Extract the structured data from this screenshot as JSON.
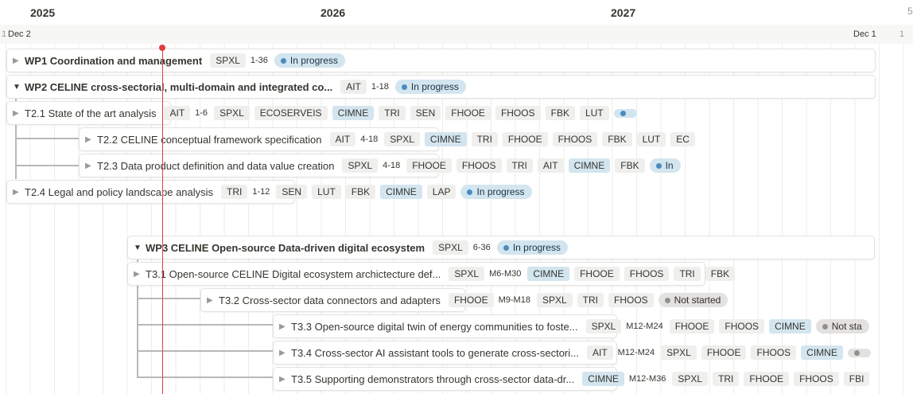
{
  "timeline": {
    "years": [
      "2025",
      "2026",
      "2027",
      "5"
    ],
    "day_left_partial": "1",
    "day_start": "Dec 2",
    "day_end": "Dec 1",
    "day_right_partial": "1"
  },
  "rows": [
    {
      "title": "WP1 Coordination and management",
      "expanded": false,
      "tags": [
        {
          "t": "tag",
          "v": "SPXL"
        },
        {
          "t": "plain",
          "v": "1-36"
        },
        {
          "t": "status",
          "v": "In progress",
          "kind": "prog"
        }
      ]
    },
    {
      "title": "WP2 CELINE cross-sectorial, multi-domain and integrated co...",
      "expanded": true,
      "tags": [
        {
          "t": "tag",
          "v": "AIT"
        },
        {
          "t": "plain",
          "v": "1-18"
        },
        {
          "t": "status",
          "v": "In progress",
          "kind": "prog"
        }
      ]
    },
    {
      "title": "T2.1 State of the art analysis",
      "expanded": false,
      "tags": [
        {
          "t": "tag",
          "v": "AIT"
        },
        {
          "t": "plain",
          "v": "1-6"
        },
        {
          "t": "tag",
          "v": "SPXL"
        },
        {
          "t": "tag",
          "v": "ECOSERVEIS"
        },
        {
          "t": "tag",
          "v": "CIMNE",
          "blue": true
        },
        {
          "t": "tag",
          "v": "TRI"
        },
        {
          "t": "tag",
          "v": "SEN"
        },
        {
          "t": "tag",
          "v": "FHOOE"
        },
        {
          "t": "tag",
          "v": "FHOOS"
        },
        {
          "t": "tag",
          "v": "FBK"
        },
        {
          "t": "tag",
          "v": "LUT"
        },
        {
          "t": "status",
          "v": "",
          "kind": "prog"
        }
      ]
    },
    {
      "title": "T2.2 CELINE conceptual framework specification",
      "expanded": false,
      "tags": [
        {
          "t": "tag",
          "v": "AIT"
        },
        {
          "t": "plain",
          "v": "4-18"
        },
        {
          "t": "tag",
          "v": "SPXL"
        },
        {
          "t": "tag",
          "v": "CIMNE",
          "blue": true
        },
        {
          "t": "tag",
          "v": "TRI"
        },
        {
          "t": "tag",
          "v": "FHOOE"
        },
        {
          "t": "tag",
          "v": "FHOOS"
        },
        {
          "t": "tag",
          "v": "FBK"
        },
        {
          "t": "tag",
          "v": "LUT"
        },
        {
          "t": "tag",
          "v": "EC"
        }
      ]
    },
    {
      "title": "T2.3 Data product definition and data value creation",
      "expanded": false,
      "tags": [
        {
          "t": "tag",
          "v": "SPXL"
        },
        {
          "t": "plain",
          "v": "4-18"
        },
        {
          "t": "tag",
          "v": "FHOOE"
        },
        {
          "t": "tag",
          "v": "FHOOS"
        },
        {
          "t": "tag",
          "v": "TRI"
        },
        {
          "t": "tag",
          "v": "AIT"
        },
        {
          "t": "tag",
          "v": "CIMNE",
          "blue": true
        },
        {
          "t": "tag",
          "v": "FBK"
        },
        {
          "t": "status",
          "v": "In",
          "kind": "prog"
        }
      ]
    },
    {
      "title": "T2.4 Legal and policy landscape analysis",
      "expanded": false,
      "tags": [
        {
          "t": "tag",
          "v": "TRI"
        },
        {
          "t": "plain",
          "v": "1-12"
        },
        {
          "t": "tag",
          "v": "SEN"
        },
        {
          "t": "tag",
          "v": "LUT"
        },
        {
          "t": "tag",
          "v": "FBK"
        },
        {
          "t": "tag",
          "v": "CIMNE",
          "blue": true
        },
        {
          "t": "tag",
          "v": "LAP"
        },
        {
          "t": "status",
          "v": "In progress",
          "kind": "prog"
        }
      ]
    },
    {
      "title": "WP3 CELINE Open-source Data-driven digital ecosystem",
      "expanded": true,
      "tags": [
        {
          "t": "tag",
          "v": "SPXL"
        },
        {
          "t": "plain",
          "v": "6-36"
        },
        {
          "t": "status",
          "v": "In progress",
          "kind": "prog"
        }
      ]
    },
    {
      "title": "T3.1 Open-source CELINE Digital ecosystem archictecture def...",
      "expanded": false,
      "tags": [
        {
          "t": "tag",
          "v": "SPXL"
        },
        {
          "t": "plain",
          "v": "M6-M30"
        },
        {
          "t": "tag",
          "v": "CIMNE",
          "blue": true
        },
        {
          "t": "tag",
          "v": "FHOOE"
        },
        {
          "t": "tag",
          "v": "FHOOS"
        },
        {
          "t": "tag",
          "v": "TRI"
        },
        {
          "t": "tag",
          "v": "FBK"
        }
      ]
    },
    {
      "title": "T3.2 Cross-sector data connectors and adapters",
      "expanded": false,
      "tags": [
        {
          "t": "tag",
          "v": "FHOOE"
        },
        {
          "t": "plain",
          "v": "M9-M18"
        },
        {
          "t": "tag",
          "v": "SPXL"
        },
        {
          "t": "tag",
          "v": "TRI"
        },
        {
          "t": "tag",
          "v": "FHOOS"
        },
        {
          "t": "status",
          "v": "Not started",
          "kind": "ns"
        }
      ]
    },
    {
      "title": "T3.3 Open-source digital twin of energy communities to foste...",
      "expanded": false,
      "tags": [
        {
          "t": "tag",
          "v": "SPXL"
        },
        {
          "t": "plain",
          "v": "M12-M24"
        },
        {
          "t": "tag",
          "v": "FHOOE"
        },
        {
          "t": "tag",
          "v": "FHOOS"
        },
        {
          "t": "tag",
          "v": "CIMNE",
          "blue": true
        },
        {
          "t": "status",
          "v": "Not sta",
          "kind": "ns"
        }
      ]
    },
    {
      "title": "T3.4 Cross-sector AI assistant tools to generate cross-sectori...",
      "expanded": false,
      "tags": [
        {
          "t": "tag",
          "v": "AIT"
        },
        {
          "t": "plain",
          "v": "M12-M24"
        },
        {
          "t": "tag",
          "v": "SPXL"
        },
        {
          "t": "tag",
          "v": "FHOOE"
        },
        {
          "t": "tag",
          "v": "FHOOS"
        },
        {
          "t": "tag",
          "v": "CIMNE",
          "blue": true
        },
        {
          "t": "status",
          "v": "",
          "kind": "ns"
        }
      ]
    },
    {
      "title": "T3.5 Supporting demonstrators through cross-sector data-dr...",
      "expanded": false,
      "tags": [
        {
          "t": "tag",
          "v": "CIMNE",
          "blue": true
        },
        {
          "t": "plain",
          "v": "M12-M36"
        },
        {
          "t": "tag",
          "v": "SPXL"
        },
        {
          "t": "tag",
          "v": "TRI"
        },
        {
          "t": "tag",
          "v": "FHOOE"
        },
        {
          "t": "tag",
          "v": "FHOOS"
        },
        {
          "t": "tag",
          "v": "FBI"
        }
      ]
    }
  ]
}
